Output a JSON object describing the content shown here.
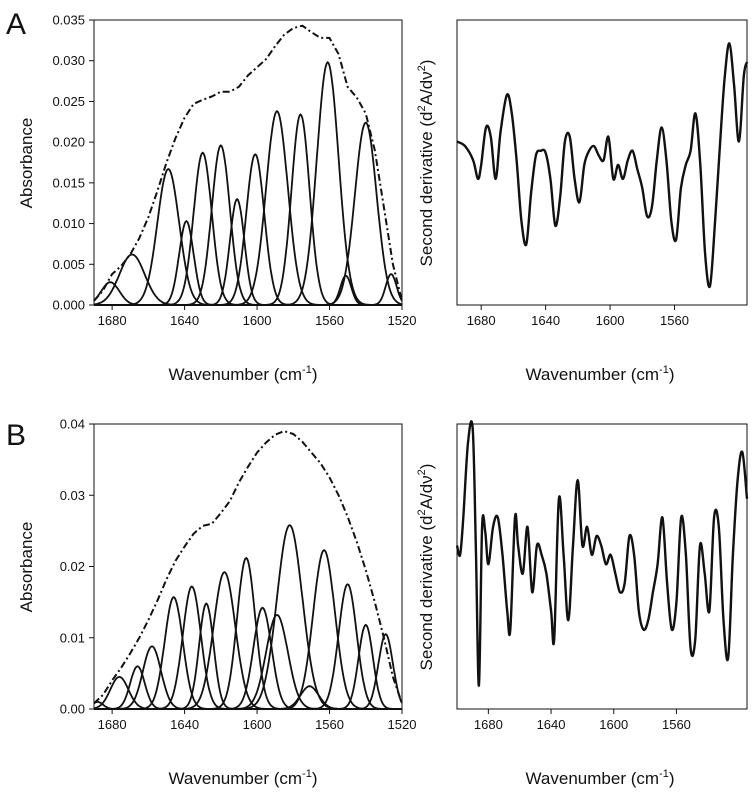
{
  "figure": {
    "panels": [
      {
        "letter": "A",
        "fit": {
          "ylabel": "Absorbance",
          "xlabel": "Wavenumber (cm",
          "xlabel_sup": "-1",
          "xlabel_end": ")",
          "xticks": [
            "1680",
            "1640",
            "1600",
            "1560",
            "1520"
          ],
          "yticks": [
            "0.000",
            "0.005",
            "0.010",
            "0.015",
            "0.020",
            "0.025",
            "0.030",
            "0.035"
          ]
        },
        "deriv": {
          "ylabel_pre": "Second derivative (d",
          "ylabel_sup1": "2",
          "ylabel_mid": "A/d",
          "ylabel_nu": "ν",
          "ylabel_sup2": "2",
          "ylabel_end": ")",
          "xlabel": "Wavenumber (cm",
          "xlabel_sup": "-1",
          "xlabel_end": ")",
          "xticks": [
            "1680",
            "1640",
            "1600",
            "1560"
          ]
        }
      },
      {
        "letter": "B",
        "fit": {
          "ylabel": "Absorbance",
          "xlabel": "Wavenumber (cm",
          "xlabel_sup": "-1",
          "xlabel_end": ")",
          "xticks": [
            "1680",
            "1640",
            "1600",
            "1560",
            "1520"
          ],
          "yticks": [
            "0.00",
            "0.01",
            "0.02",
            "0.03",
            "0.04"
          ]
        },
        "deriv": {
          "ylabel_pre": "Second derivative (d",
          "ylabel_sup1": "2",
          "ylabel_mid": "A/d",
          "ylabel_nu": "ν",
          "ylabel_sup2": "2",
          "ylabel_end": ")",
          "xlabel": "Wavenumber (cm",
          "xlabel_sup": "-1",
          "xlabel_end": ")",
          "xticks": [
            "1680",
            "1640",
            "1600",
            "1560"
          ]
        }
      }
    ]
  },
  "chart_data": [
    {
      "panel": "A",
      "type": "line",
      "ylabel": "Absorbance",
      "xlabel": "Wavenumber (cm-1)",
      "xlim": [
        1690,
        1520
      ],
      "ylim": [
        0,
        0.035
      ],
      "x_reversed": true,
      "grid": false,
      "legend": "none",
      "components": [
        {
          "center": 1681,
          "height": 0.0028,
          "width": 5
        },
        {
          "center": 1669,
          "height": 0.0062,
          "width": 7
        },
        {
          "center": 1649,
          "height": 0.0167,
          "width": 6
        },
        {
          "center": 1639,
          "height": 0.0103,
          "width": 4
        },
        {
          "center": 1630,
          "height": 0.0187,
          "width": 5
        },
        {
          "center": 1620,
          "height": 0.0196,
          "width": 5
        },
        {
          "center": 1611,
          "height": 0.013,
          "width": 4
        },
        {
          "center": 1601,
          "height": 0.0185,
          "width": 5
        },
        {
          "center": 1589,
          "height": 0.0238,
          "width": 6
        },
        {
          "center": 1576,
          "height": 0.0234,
          "width": 5
        },
        {
          "center": 1561,
          "height": 0.0298,
          "width": 6
        },
        {
          "center": 1551,
          "height": 0.0036,
          "width": 3
        },
        {
          "center": 1540,
          "height": 0.0224,
          "width": 6
        },
        {
          "center": 1526,
          "height": 0.0038,
          "width": 3
        }
      ],
      "envelope": {
        "style": "dash-dot",
        "x": [
          1690,
          1685,
          1680,
          1675,
          1670,
          1665,
          1660,
          1655,
          1650,
          1645,
          1640,
          1635,
          1630,
          1625,
          1620,
          1615,
          1610,
          1605,
          1600,
          1595,
          1590,
          1585,
          1580,
          1575,
          1570,
          1565,
          1560,
          1555,
          1550,
          1545,
          1540,
          1535,
          1530,
          1525,
          1520
        ],
        "y": [
          0.0005,
          0.0018,
          0.0038,
          0.0048,
          0.0062,
          0.0082,
          0.0108,
          0.014,
          0.0175,
          0.0205,
          0.023,
          0.0247,
          0.0252,
          0.0256,
          0.0262,
          0.0262,
          0.0268,
          0.0282,
          0.0292,
          0.0302,
          0.0318,
          0.0332,
          0.034,
          0.0343,
          0.0335,
          0.0328,
          0.0328,
          0.0308,
          0.0268,
          0.0255,
          0.0235,
          0.019,
          0.012,
          0.005,
          0.0005
        ]
      }
    },
    {
      "panel": "A",
      "type": "line",
      "ylabel": "Second derivative (d2A/dν2)",
      "xlabel": "Wavenumber (cm-1)",
      "xlim": [
        1695,
        1515
      ],
      "x_reversed": true,
      "yaxis_ticks": false,
      "series": [
        {
          "x": [
            1695,
            1690,
            1685,
            1682,
            1680,
            1677,
            1674,
            1671,
            1668,
            1664,
            1661,
            1658,
            1655,
            1652,
            1649,
            1646,
            1643,
            1640,
            1637,
            1634,
            1631,
            1628,
            1625,
            1622,
            1619,
            1616,
            1613,
            1610,
            1607,
            1604,
            1601,
            1598,
            1595,
            1592,
            1589,
            1586,
            1583,
            1580,
            1577,
            1574,
            1571,
            1568,
            1565,
            1562,
            1559,
            1556,
            1553,
            1550,
            1547,
            1544,
            1541,
            1538,
            1535,
            1532,
            1529,
            1526,
            1523,
            1520,
            1517,
            1515
          ],
          "y": [
            0.3,
            0.25,
            0.1,
            -0.1,
            0.05,
            0.45,
            0.35,
            -0.1,
            0.4,
            0.8,
            0.6,
            0.1,
            -0.55,
            -0.8,
            -0.25,
            0.15,
            0.2,
            0.18,
            -0.1,
            -0.6,
            -0.3,
            0.3,
            0.35,
            -0.1,
            -0.35,
            0.05,
            0.2,
            0.25,
            0.15,
            0.1,
            0.35,
            -0.1,
            0.05,
            -0.1,
            0.1,
            0.2,
            0.0,
            -0.2,
            -0.5,
            -0.4,
            0.1,
            0.45,
            0.1,
            -0.55,
            -0.75,
            -0.2,
            0.05,
            0.2,
            0.6,
            0.05,
            -0.9,
            -1.25,
            -0.6,
            0.2,
            0.95,
            1.35,
            0.9,
            0.3,
            1.0,
            1.15
          ]
        }
      ]
    },
    {
      "panel": "B",
      "type": "line",
      "ylabel": "Absorbance",
      "xlabel": "Wavenumber (cm-1)",
      "xlim": [
        1690,
        1520
      ],
      "ylim": [
        0,
        0.04
      ],
      "x_reversed": true,
      "grid": false,
      "legend": "none",
      "components": [
        {
          "center": 1688,
          "height": 0.001,
          "width": 3
        },
        {
          "center": 1676,
          "height": 0.0045,
          "width": 5
        },
        {
          "center": 1666,
          "height": 0.006,
          "width": 4
        },
        {
          "center": 1658,
          "height": 0.0088,
          "width": 5
        },
        {
          "center": 1646,
          "height": 0.0157,
          "width": 5
        },
        {
          "center": 1636,
          "height": 0.0172,
          "width": 5
        },
        {
          "center": 1628,
          "height": 0.0148,
          "width": 4
        },
        {
          "center": 1618,
          "height": 0.0192,
          "width": 6
        },
        {
          "center": 1606,
          "height": 0.0212,
          "width": 5
        },
        {
          "center": 1597,
          "height": 0.0142,
          "width": 5
        },
        {
          "center": 1589,
          "height": 0.0132,
          "width": 6
        },
        {
          "center": 1582,
          "height": 0.0258,
          "width": 7
        },
        {
          "center": 1571,
          "height": 0.0032,
          "width": 5
        },
        {
          "center": 1563,
          "height": 0.0223,
          "width": 6
        },
        {
          "center": 1550,
          "height": 0.0175,
          "width": 5
        },
        {
          "center": 1540,
          "height": 0.0118,
          "width": 4
        },
        {
          "center": 1529,
          "height": 0.0105,
          "width": 4
        }
      ],
      "envelope": {
        "style": "dash-dot",
        "x": [
          1690,
          1685,
          1680,
          1675,
          1670,
          1665,
          1660,
          1655,
          1650,
          1645,
          1640,
          1635,
          1630,
          1625,
          1620,
          1615,
          1610,
          1605,
          1600,
          1595,
          1590,
          1585,
          1580,
          1575,
          1570,
          1565,
          1560,
          1555,
          1550,
          1545,
          1540,
          1535,
          1530,
          1525,
          1520
        ],
        "y": [
          0.0008,
          0.002,
          0.004,
          0.0058,
          0.0078,
          0.01,
          0.0125,
          0.0152,
          0.0182,
          0.0208,
          0.0228,
          0.0246,
          0.0257,
          0.026,
          0.0275,
          0.0292,
          0.0318,
          0.034,
          0.036,
          0.0374,
          0.0385,
          0.039,
          0.0386,
          0.0375,
          0.036,
          0.0345,
          0.0325,
          0.03,
          0.027,
          0.0235,
          0.0195,
          0.015,
          0.01,
          0.0045,
          0.0008
        ]
      }
    },
    {
      "panel": "B",
      "type": "line",
      "ylabel": "Second derivative (d2A/dν2)",
      "xlabel": "Wavenumber (cm-1)",
      "xlim": [
        1700,
        1515
      ],
      "x_reversed": true,
      "yaxis_ticks": false,
      "series": [
        {
          "x": [
            1700,
            1698,
            1696,
            1693,
            1690,
            1688,
            1686,
            1684,
            1682,
            1680,
            1677,
            1674,
            1671,
            1668,
            1666,
            1663,
            1661,
            1658,
            1655,
            1652,
            1649,
            1646,
            1643,
            1640,
            1638,
            1635,
            1632,
            1629,
            1626,
            1623,
            1620,
            1617,
            1614,
            1611,
            1608,
            1605,
            1602,
            1599,
            1596,
            1593,
            1590,
            1587,
            1584,
            1581,
            1578,
            1575,
            1572,
            1569,
            1566,
            1563,
            1560,
            1557,
            1554,
            1551,
            1548,
            1545,
            1542,
            1539,
            1536,
            1533,
            1530,
            1527,
            1524,
            1521,
            1518,
            1515
          ],
          "y": [
            0.3,
            0.2,
            0.6,
            1.4,
            1.55,
            0.3,
            -1.2,
            0.5,
            0.45,
            0.1,
            0.5,
            0.6,
            0.2,
            -0.4,
            -0.6,
            0.6,
            0.3,
            0.0,
            0.5,
            -0.2,
            0.3,
            0.2,
            0.0,
            -0.4,
            -0.7,
            0.8,
            0.2,
            -0.5,
            0.3,
            1.0,
            0.3,
            0.5,
            0.2,
            0.4,
            0.3,
            0.1,
            0.2,
            0.0,
            -0.2,
            -0.1,
            0.4,
            0.2,
            -0.4,
            -0.6,
            -0.5,
            -0.2,
            0.1,
            0.6,
            -0.1,
            -0.6,
            -0.3,
            0.6,
            0.2,
            -0.8,
            -0.7,
            0.3,
            0.0,
            -0.4,
            0.6,
            0.5,
            -0.5,
            -0.9,
            0.2,
            1.0,
            1.3,
            0.8
          ]
        }
      ]
    }
  ]
}
